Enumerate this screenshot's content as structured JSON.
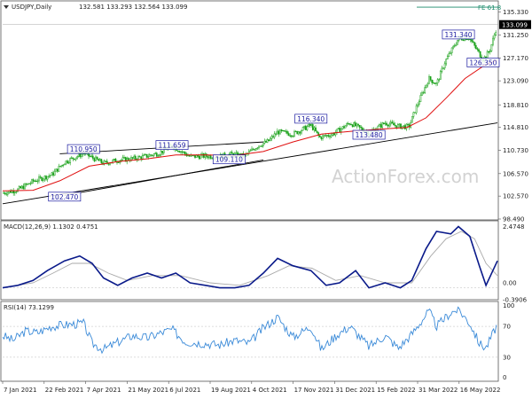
{
  "chart_data": [
    {
      "type": "candlestick",
      "title": "USDJPY,Daily",
      "ohlc": "132.581 133.293 132.564 133.099",
      "last_price": "133.099",
      "ylim": [
        98.49,
        137.0
      ],
      "y_ticks": [
        "135.330",
        "131.250",
        "127.170",
        "123.090",
        "118.810",
        "114.810",
        "110.730",
        "106.570",
        "102.570",
        "98.490"
      ],
      "x_ticks": [
        "7 Jan 2021",
        "22 Feb 2021",
        "7 Apr 2021",
        "21 May 2021",
        "6 Jul 2021",
        "19 Aug 2021",
        "4 Oct 2021",
        "17 Nov 2021",
        "31 Dec 2021",
        "15 Feb 2022",
        "31 Mar 2022",
        "16 May 2022"
      ],
      "fibo_label": "FE 61.8",
      "fibo_level": 136.2,
      "price_labels": [
        {
          "text": "110.950",
          "date": "2021-03-30",
          "value": 110.95
        },
        {
          "text": "111.659",
          "date": "2021-07-01",
          "value": 111.66
        },
        {
          "text": "102.470",
          "date": "2021-03-10",
          "value": 102.47
        },
        {
          "text": "109.110",
          "date": "2021-08-30",
          "value": 109.11
        },
        {
          "text": "116.340",
          "date": "2021-11-24",
          "value": 116.34
        },
        {
          "text": "113.480",
          "date": "2022-01-24",
          "value": 113.48
        },
        {
          "text": "131.340",
          "date": "2022-04-28",
          "value": 131.34
        },
        {
          "text": "126.350",
          "date": "2022-05-24",
          "value": 126.35
        }
      ],
      "price_path": [
        [
          "2021-01-04",
          103.1
        ],
        [
          "2021-01-20",
          103.7
        ],
        [
          "2021-02-05",
          105.2
        ],
        [
          "2021-02-25",
          106.4
        ],
        [
          "2021-03-10",
          108.6
        ],
        [
          "2021-03-30",
          110.2
        ],
        [
          "2021-04-20",
          108.4
        ],
        [
          "2021-05-06",
          109.0
        ],
        [
          "2021-05-20",
          109.2
        ],
        [
          "2021-06-02",
          109.6
        ],
        [
          "2021-06-17",
          110.2
        ],
        [
          "2021-07-01",
          111.5
        ],
        [
          "2021-07-20",
          109.6
        ],
        [
          "2021-08-05",
          109.7
        ],
        [
          "2021-08-19",
          109.6
        ],
        [
          "2021-09-01",
          110.0
        ],
        [
          "2021-09-15",
          109.7
        ],
        [
          "2021-09-30",
          111.6
        ],
        [
          "2021-10-10",
          112.3
        ],
        [
          "2021-10-20",
          114.0
        ],
        [
          "2021-11-05",
          113.6
        ],
        [
          "2021-11-24",
          115.2
        ],
        [
          "2021-12-03",
          113.0
        ],
        [
          "2021-12-17",
          113.6
        ],
        [
          "2022-01-04",
          115.6
        ],
        [
          "2022-01-24",
          113.8
        ],
        [
          "2022-02-10",
          115.6
        ],
        [
          "2022-02-24",
          115.0
        ],
        [
          "2022-03-07",
          114.9
        ],
        [
          "2022-03-15",
          118.5
        ],
        [
          "2022-03-28",
          123.5
        ],
        [
          "2022-04-05",
          122.5
        ],
        [
          "2022-04-14",
          126.5
        ],
        [
          "2022-04-28",
          130.6
        ],
        [
          "2022-05-09",
          130.8
        ],
        [
          "2022-05-24",
          126.9
        ],
        [
          "2022-05-31",
          128.5
        ],
        [
          "2022-06-08",
          133.1
        ]
      ],
      "ema_path": [
        [
          "2021-01-04",
          103.5
        ],
        [
          "2021-02-05",
          103.6
        ],
        [
          "2021-03-05",
          105.3
        ],
        [
          "2021-04-05",
          107.9
        ],
        [
          "2021-05-05",
          108.7
        ],
        [
          "2021-06-05",
          109.2
        ],
        [
          "2021-07-05",
          109.9
        ],
        [
          "2021-08-05",
          109.9
        ],
        [
          "2021-09-05",
          109.8
        ],
        [
          "2021-10-05",
          110.5
        ],
        [
          "2021-11-05",
          112.2
        ],
        [
          "2021-12-05",
          113.6
        ],
        [
          "2022-01-05",
          114.1
        ],
        [
          "2022-02-05",
          114.5
        ],
        [
          "2022-03-05",
          114.8
        ],
        [
          "2022-03-25",
          116.5
        ],
        [
          "2022-04-15",
          120.0
        ],
        [
          "2022-05-05",
          123.5
        ],
        [
          "2022-05-25",
          125.8
        ],
        [
          "2022-06-08",
          126.8
        ]
      ],
      "trendlines": [
        {
          "from": [
            "2021-01-04",
            101.2
          ],
          "to": [
            "2022-06-08",
            115.6
          ]
        },
        {
          "from": [
            "2021-03-05",
            110.1
          ],
          "to": [
            "2021-10-05",
            112.2
          ]
        },
        {
          "from": [
            "2021-03-10",
            102.7
          ],
          "to": [
            "2021-10-05",
            109.0
          ]
        }
      ]
    },
    {
      "type": "line",
      "title": "MACD(12,26,9) 1.1302 0.4751",
      "ylim": [
        -0.45,
        2.7
      ],
      "y_ticks": [
        "2.4748",
        "0.00",
        "-0.3906"
      ],
      "zero_line": 0,
      "series": [
        {
          "values": [
            [
              "2021-01-04",
              0.0
            ],
            [
              "2021-01-20",
              0.1
            ],
            [
              "2021-02-05",
              0.3
            ],
            [
              "2021-02-20",
              0.7
            ],
            [
              "2021-03-10",
              1.1
            ],
            [
              "2021-03-26",
              1.3
            ],
            [
              "2021-04-08",
              1.0
            ],
            [
              "2021-04-20",
              0.4
            ],
            [
              "2021-05-05",
              0.1
            ],
            [
              "2021-05-20",
              0.4
            ],
            [
              "2021-06-05",
              0.6
            ],
            [
              "2021-06-20",
              0.4
            ],
            [
              "2021-07-05",
              0.6
            ],
            [
              "2021-07-20",
              0.2
            ],
            [
              "2021-08-05",
              0.1
            ],
            [
              "2021-08-20",
              0.0
            ],
            [
              "2021-09-05",
              0.0
            ],
            [
              "2021-09-20",
              0.1
            ],
            [
              "2021-10-05",
              0.6
            ],
            [
              "2021-10-20",
              1.2
            ],
            [
              "2021-11-05",
              0.9
            ],
            [
              "2021-11-24",
              0.7
            ],
            [
              "2021-12-10",
              0.1
            ],
            [
              "2021-12-24",
              0.2
            ],
            [
              "2022-01-10",
              0.7
            ],
            [
              "2022-01-24",
              0.0
            ],
            [
              "2022-02-10",
              0.2
            ],
            [
              "2022-02-26",
              0.0
            ],
            [
              "2022-03-10",
              0.3
            ],
            [
              "2022-03-25",
              1.6
            ],
            [
              "2022-04-05",
              2.3
            ],
            [
              "2022-04-20",
              2.2
            ],
            [
              "2022-04-28",
              2.5
            ],
            [
              "2022-05-10",
              2.1
            ],
            [
              "2022-05-20",
              0.9
            ],
            [
              "2022-05-27",
              0.1
            ],
            [
              "2022-06-08",
              1.1
            ]
          ]
        },
        {
          "values": [
            [
              "2021-01-04",
              0.0
            ],
            [
              "2021-02-05",
              0.2
            ],
            [
              "2021-02-26",
              0.6
            ],
            [
              "2021-03-18",
              1.0
            ],
            [
              "2021-04-05",
              1.0
            ],
            [
              "2021-04-25",
              0.6
            ],
            [
              "2021-05-15",
              0.3
            ],
            [
              "2021-06-10",
              0.5
            ],
            [
              "2021-07-10",
              0.5
            ],
            [
              "2021-08-10",
              0.2
            ],
            [
              "2021-09-10",
              0.1
            ],
            [
              "2021-10-10",
              0.5
            ],
            [
              "2021-11-01",
              0.9
            ],
            [
              "2021-11-25",
              0.8
            ],
            [
              "2021-12-20",
              0.3
            ],
            [
              "2022-01-15",
              0.5
            ],
            [
              "2022-02-10",
              0.2
            ],
            [
              "2022-03-10",
              0.2
            ],
            [
              "2022-03-30",
              1.3
            ],
            [
              "2022-04-15",
              2.0
            ],
            [
              "2022-05-01",
              2.3
            ],
            [
              "2022-05-15",
              2.0
            ],
            [
              "2022-05-27",
              1.0
            ],
            [
              "2022-06-08",
              0.5
            ]
          ]
        }
      ]
    },
    {
      "type": "line",
      "title": "RSI(14) 73.1299",
      "ylim": [
        0,
        100
      ],
      "y_ticks": [
        "100",
        "70",
        "30",
        "0"
      ],
      "levels": [
        70,
        30
      ],
      "series": [
        {
          "values": [
            [
              "2021-01-04",
              58
            ],
            [
              "2021-01-15",
              52
            ],
            [
              "2021-01-28",
              64
            ],
            [
              "2021-02-10",
              62
            ],
            [
              "2021-02-24",
              70
            ],
            [
              "2021-03-10",
              72
            ],
            [
              "2021-03-30",
              74
            ],
            [
              "2021-04-08",
              48
            ],
            [
              "2021-04-20",
              40
            ],
            [
              "2021-05-06",
              50
            ],
            [
              "2021-05-20",
              58
            ],
            [
              "2021-06-05",
              55
            ],
            [
              "2021-06-20",
              62
            ],
            [
              "2021-07-01",
              66
            ],
            [
              "2021-07-15",
              50
            ],
            [
              "2021-08-05",
              48
            ],
            [
              "2021-08-20",
              46
            ],
            [
              "2021-09-05",
              52
            ],
            [
              "2021-09-20",
              48
            ],
            [
              "2021-10-05",
              68
            ],
            [
              "2021-10-20",
              82
            ],
            [
              "2021-11-05",
              56
            ],
            [
              "2021-11-24",
              70
            ],
            [
              "2021-12-05",
              40
            ],
            [
              "2021-12-20",
              58
            ],
            [
              "2022-01-04",
              70
            ],
            [
              "2022-01-24",
              44
            ],
            [
              "2022-02-10",
              58
            ],
            [
              "2022-02-24",
              42
            ],
            [
              "2022-03-10",
              60
            ],
            [
              "2022-03-28",
              90
            ],
            [
              "2022-04-05",
              70
            ],
            [
              "2022-04-20",
              88
            ],
            [
              "2022-04-28",
              92
            ],
            [
              "2022-05-10",
              74
            ],
            [
              "2022-05-20",
              48
            ],
            [
              "2022-05-27",
              42
            ],
            [
              "2022-06-08",
              73.1
            ]
          ]
        }
      ]
    }
  ],
  "watermark": "ActionForex.com",
  "colors": {
    "candle": "#18a018",
    "ema": "#e01010",
    "trendline": "#000000",
    "macd": "#0a1a8a",
    "signal": "#aaaaaa",
    "rsi": "#3a8ad8",
    "fibo": "#1a8a6a",
    "label_text": "#1a1aa0",
    "label_border": "#1a1aa0"
  }
}
